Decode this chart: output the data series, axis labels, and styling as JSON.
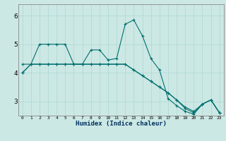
{
  "xlabel": "Humidex (Indice chaleur)",
  "bg_color": "#cce8e4",
  "line_color": "#007070",
  "grid_color": "#aad8d4",
  "xlim": [
    -0.5,
    23.5
  ],
  "ylim": [
    2.5,
    6.4
  ],
  "yticks": [
    3,
    4,
    5,
    6
  ],
  "xticks": [
    0,
    1,
    2,
    3,
    4,
    5,
    6,
    7,
    8,
    9,
    10,
    11,
    12,
    13,
    14,
    15,
    16,
    17,
    18,
    19,
    20,
    21,
    22,
    23
  ],
  "line1_x": [
    0,
    1,
    2,
    3,
    4,
    5,
    6,
    7,
    8,
    9,
    10,
    11,
    12,
    13,
    14,
    15,
    16,
    17,
    18,
    19,
    20,
    21,
    22,
    23
  ],
  "line1_y": [
    4.0,
    4.3,
    5.0,
    5.0,
    5.0,
    5.0,
    4.3,
    4.3,
    4.8,
    4.8,
    4.45,
    4.5,
    5.7,
    5.85,
    5.3,
    4.5,
    4.1,
    3.1,
    2.85,
    2.65,
    2.55,
    2.9,
    3.05,
    2.6
  ],
  "line2_x": [
    0,
    1,
    2,
    3,
    4,
    5,
    6,
    7,
    8,
    9,
    10,
    11,
    12,
    13,
    14,
    15,
    16,
    17,
    18,
    19,
    20,
    21,
    22,
    23
  ],
  "line2_y": [
    4.3,
    4.3,
    4.3,
    4.3,
    4.3,
    4.3,
    4.3,
    4.3,
    4.3,
    4.3,
    4.3,
    4.3,
    4.3,
    4.1,
    3.9,
    3.7,
    3.5,
    3.3,
    3.05,
    2.8,
    2.65,
    2.9,
    3.05,
    2.6
  ],
  "line3_x": [
    0,
    1,
    2,
    3,
    4,
    5,
    6,
    7,
    8,
    9,
    10,
    11,
    12,
    13,
    14,
    15,
    16,
    17,
    18,
    19,
    20,
    21,
    22,
    23
  ],
  "line3_y": [
    4.0,
    4.3,
    4.3,
    4.3,
    4.3,
    4.3,
    4.3,
    4.3,
    4.3,
    4.3,
    4.3,
    4.3,
    4.3,
    4.1,
    3.9,
    3.7,
    3.5,
    3.3,
    3.05,
    2.75,
    2.6,
    2.9,
    3.05,
    2.6
  ]
}
